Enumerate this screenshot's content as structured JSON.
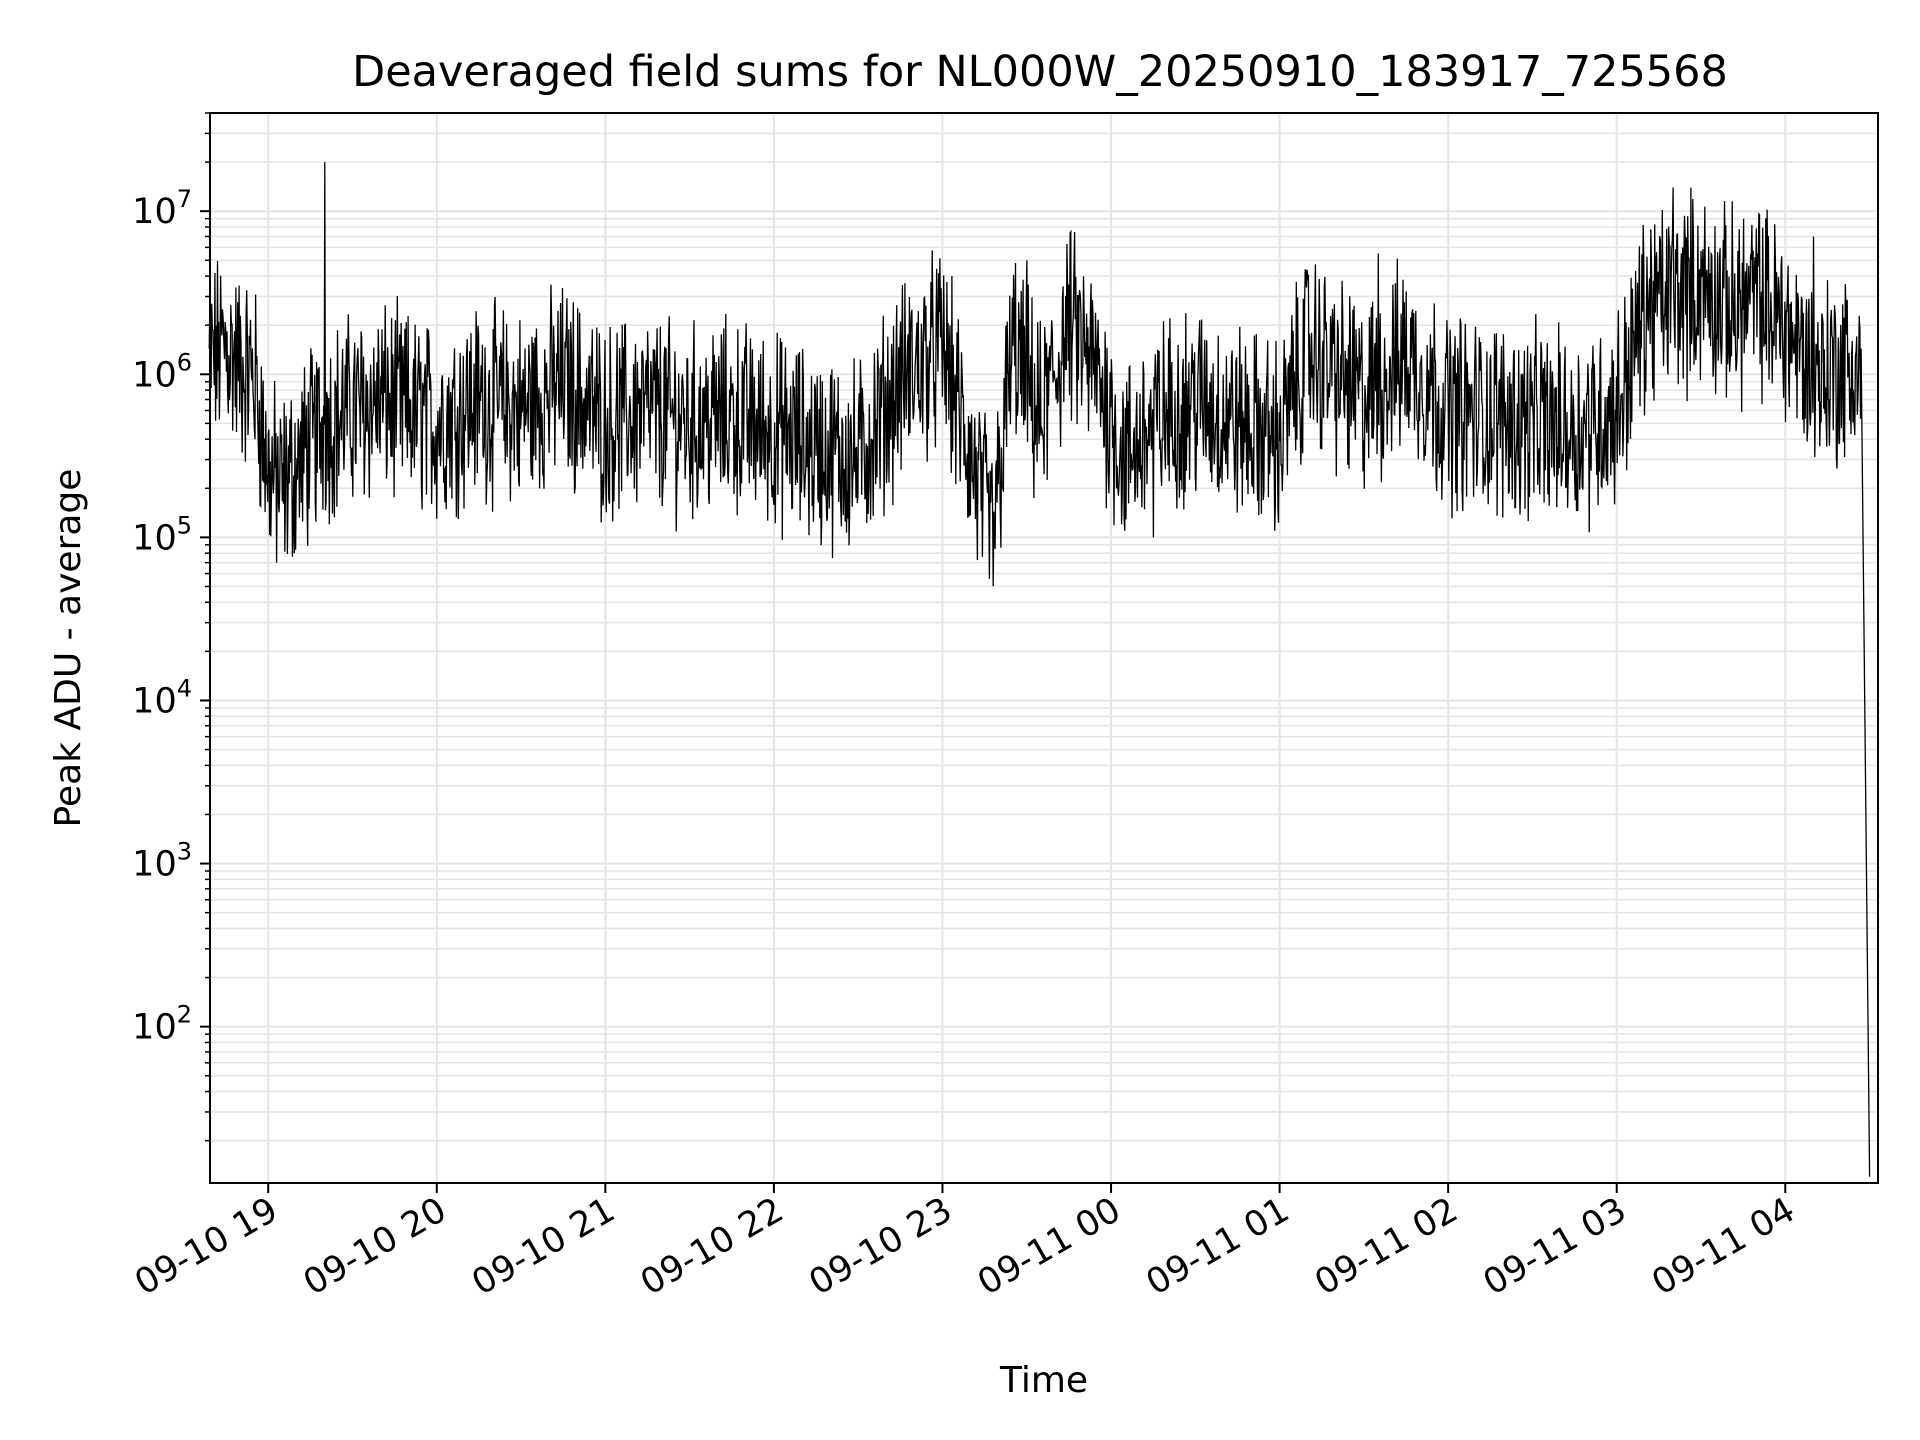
{
  "chart_data": {
    "type": "line",
    "title": "Deaveraged field sums for NL000W_20250910_183917_725568",
    "xlabel": "Time",
    "ylabel": "Peak ADU - average",
    "yscale": "log",
    "grid": true,
    "line_color": "#000000",
    "x_ticks": [
      "09-10 19",
      "09-10 20",
      "09-10 21",
      "09-10 22",
      "09-10 23",
      "09-11 00",
      "09-11 01",
      "09-11 02",
      "09-11 03",
      "09-11 04"
    ],
    "x_range": [
      "2025-09-10 18:39:17",
      "2025-09-11 04:33:00"
    ],
    "y_ticks": [
      {
        "base": "10",
        "exp": "2",
        "value": 100
      },
      {
        "base": "10",
        "exp": "3",
        "value": 1000
      },
      {
        "base": "10",
        "exp": "4",
        "value": 10000
      },
      {
        "base": "10",
        "exp": "5",
        "value": 100000
      },
      {
        "base": "10",
        "exp": "6",
        "value": 1000000
      },
      {
        "base": "10",
        "exp": "7",
        "value": 10000000
      }
    ],
    "ylim": [
      11,
      40000000
    ],
    "series": [
      {
        "x": [
          "2025-09-10 18:39",
          "2025-09-10 18:45",
          "2025-09-10 18:50",
          "2025-09-10 18:55",
          "2025-09-10 19:00",
          "2025-09-10 19:05",
          "2025-09-10 19:12",
          "2025-09-10 19:20",
          "2025-09-10 19:30",
          "2025-09-10 19:40",
          "2025-09-10 19:50",
          "2025-09-10 20:00",
          "2025-09-10 20:15",
          "2025-09-10 20:30",
          "2025-09-10 20:45",
          "2025-09-10 21:00",
          "2025-09-10 21:15",
          "2025-09-10 21:30",
          "2025-09-10 21:45",
          "2025-09-10 22:00",
          "2025-09-10 22:15",
          "2025-09-10 22:30",
          "2025-09-10 22:45",
          "2025-09-10 23:00",
          "2025-09-10 23:10",
          "2025-09-10 23:18",
          "2025-09-10 23:25",
          "2025-09-10 23:35",
          "2025-09-10 23:45",
          "2025-09-10 23:55",
          "2025-09-11 00:05",
          "2025-09-11 00:15",
          "2025-09-11 00:30",
          "2025-09-11 00:45",
          "2025-09-11 01:00",
          "2025-09-11 01:10",
          "2025-09-11 01:20",
          "2025-09-11 01:30",
          "2025-09-11 01:45",
          "2025-09-11 02:00",
          "2025-09-11 02:15",
          "2025-09-11 02:30",
          "2025-09-11 02:45",
          "2025-09-11 03:00",
          "2025-09-11 03:10",
          "2025-09-11 03:20",
          "2025-09-11 03:30",
          "2025-09-11 03:40",
          "2025-09-11 03:50",
          "2025-09-11 04:00",
          "2025-09-11 04:10",
          "2025-09-11 04:20",
          "2025-09-11 04:27",
          "2025-09-11 04:30"
        ],
        "y": [
          1200000,
          1500000,
          1100000,
          1000000,
          250000,
          200000,
          300000,
          500000,
          600000,
          700000,
          600000,
          500000,
          700000,
          600000,
          900000,
          500000,
          600000,
          500000,
          550000,
          450000,
          350000,
          300000,
          900000,
          1500000,
          300000,
          100000,
          1500000,
          500000,
          2000000,
          1000000,
          300000,
          500000,
          700000,
          500000,
          400000,
          1500000,
          1000000,
          700000,
          1300000,
          600000,
          550000,
          500000,
          450000,
          600000,
          2500000,
          3000000,
          3500000,
          2500000,
          3000000,
          2000000,
          1000000,
          1100000,
          1000000,
          12
        ]
      }
    ],
    "spikes": [
      {
        "x": "2025-09-10 19:20",
        "y": 20000000
      },
      {
        "x": "2025-09-10 23:30",
        "y": 5000000
      },
      {
        "x": "2025-09-11 00:15",
        "y": 100000
      },
      {
        "x": "2025-09-11 01:35",
        "y": 5500000
      },
      {
        "x": "2025-09-11 03:20",
        "y": 14000000
      },
      {
        "x": "2025-09-11 03:45",
        "y": 9000000
      },
      {
        "x": "2025-09-11 04:10",
        "y": 7000000
      }
    ]
  }
}
